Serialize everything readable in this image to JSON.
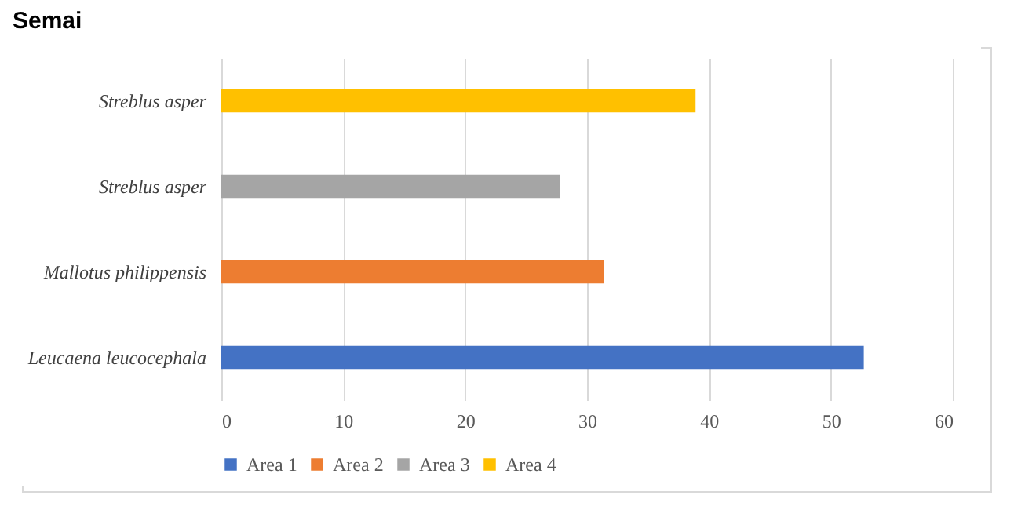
{
  "chart_data": {
    "type": "bar",
    "orientation": "horizontal",
    "title": "Semai",
    "categories": [
      "Streblus asper",
      "Streblus asper",
      "Mallotus philippensis",
      "Leucaena leucocephala"
    ],
    "series": [
      {
        "name": "Area 1",
        "color": "#4472c4",
        "values": [
          null,
          null,
          null,
          52.7
        ]
      },
      {
        "name": "Area 2",
        "color": "#ed7d31",
        "values": [
          null,
          null,
          31.4,
          null
        ]
      },
      {
        "name": "Area 3",
        "color": "#a5a5a5",
        "values": [
          null,
          27.8,
          null,
          null
        ]
      },
      {
        "name": "Area 4",
        "color": "#ffc000",
        "values": [
          38.9,
          null,
          null,
          null
        ]
      }
    ],
    "xlim": [
      0,
      60
    ],
    "xticks": [
      0,
      10,
      20,
      30,
      40,
      50,
      60
    ],
    "grid": "x",
    "legend": "bottom"
  }
}
